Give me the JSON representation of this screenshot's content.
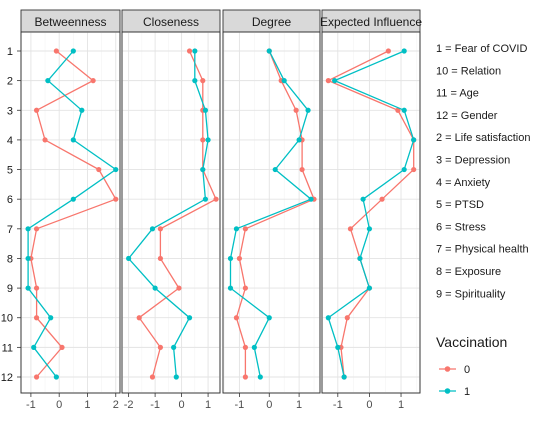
{
  "chart_data": {
    "type": "line",
    "facets": [
      {
        "title": "Betweenness",
        "xlim": [
          -1.35,
          2.15
        ],
        "xticks": [
          -1,
          0,
          1,
          2
        ],
        "series": [
          {
            "name": "0",
            "values": [
              -0.1,
              1.2,
              -0.8,
              -0.5,
              1.4,
              2.0,
              -0.8,
              -1.0,
              -0.8,
              -0.8,
              0.1,
              -0.8
            ]
          },
          {
            "name": "1",
            "values": [
              0.5,
              -0.4,
              0.8,
              0.5,
              2.0,
              0.5,
              -1.1,
              -1.1,
              -1.1,
              -0.3,
              -0.9,
              -0.1
            ]
          }
        ]
      },
      {
        "title": "Closeness",
        "xlim": [
          -2.25,
          1.45
        ],
        "xticks": [
          -2,
          -1,
          0,
          1
        ],
        "series": [
          {
            "name": "0",
            "values": [
              0.3,
              0.8,
              0.8,
              0.8,
              0.8,
              1.3,
              -0.8,
              -0.8,
              -0.1,
              -1.6,
              -0.8,
              -1.1
            ]
          },
          {
            "name": "1",
            "values": [
              0.5,
              0.5,
              0.9,
              1.0,
              0.8,
              0.9,
              -1.1,
              -2.0,
              -1.0,
              0.3,
              -0.3,
              -0.2
            ]
          }
        ]
      },
      {
        "title": "Degree",
        "xlim": [
          -1.55,
          1.7
        ],
        "xticks": [
          -1,
          0,
          1
        ],
        "series": [
          {
            "name": "0",
            "values": [
              0.0,
              0.4,
              0.9,
              1.1,
              1.1,
              1.5,
              -0.8,
              -1.0,
              -0.8,
              -1.1,
              -0.8,
              -0.8
            ]
          },
          {
            "name": "1",
            "values": [
              0.0,
              0.5,
              1.3,
              1.0,
              0.2,
              1.4,
              -1.1,
              -1.3,
              -1.3,
              0.0,
              -0.5,
              -0.3
            ]
          }
        ]
      },
      {
        "title": "Expected Influence",
        "xlim": [
          -1.5,
          1.6
        ],
        "xticks": [
          -1,
          0,
          1
        ],
        "series": [
          {
            "name": "0",
            "values": [
              0.6,
              -1.3,
              0.9,
              1.4,
              1.4,
              0.4,
              -0.6,
              -0.3,
              0.0,
              -0.7,
              -0.9,
              -0.8
            ]
          },
          {
            "name": "1",
            "values": [
              1.1,
              -1.1,
              1.1,
              1.4,
              1.1,
              -0.2,
              0.0,
              -0.3,
              0.0,
              -1.3,
              -1.0,
              -0.8
            ]
          }
        ]
      }
    ],
    "y_categories": [
      "1",
      "2",
      "3",
      "4",
      "5",
      "6",
      "7",
      "8",
      "9",
      "10",
      "11",
      "12"
    ],
    "legend": {
      "title": "Vaccination",
      "entries": [
        {
          "label": "0",
          "color": "#F8766D"
        },
        {
          "label": "1",
          "color": "#00BFC4"
        }
      ],
      "placement": "right"
    },
    "grid": true
  },
  "category_key": [
    "1 = Fear of COVID",
    "10 = Relation",
    "11 = Age",
    "12 = Gender",
    "2 = Life satisfaction",
    "3 = Depression",
    "4 = Anxiety",
    "5 = PTSD",
    "6 = Stress",
    "7 = Physical health",
    "8 = Exposure",
    "9 = Spirituality"
  ]
}
